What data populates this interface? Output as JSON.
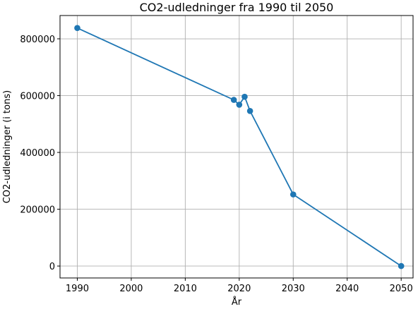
{
  "chart_data": {
    "type": "line",
    "title": "CO2-udledninger fra 1990 til 2050",
    "xlabel": "År",
    "ylabel": "CO2-udledninger (i tons)",
    "xlim": [
      1986.8,
      2052.2
    ],
    "ylim": [
      -42000,
      882000
    ],
    "xticks": [
      1990,
      2000,
      2010,
      2020,
      2030,
      2040,
      2050
    ],
    "yticks": [
      0,
      200000,
      400000,
      600000,
      800000
    ],
    "grid": true,
    "series": [
      {
        "color": "#1f77b4",
        "marker": "circle",
        "x": [
          1990,
          2019,
          2020,
          2021,
          2022,
          2030,
          2050
        ],
        "y": [
          838000,
          585000,
          568000,
          596000,
          546000,
          252000,
          0
        ]
      }
    ]
  }
}
